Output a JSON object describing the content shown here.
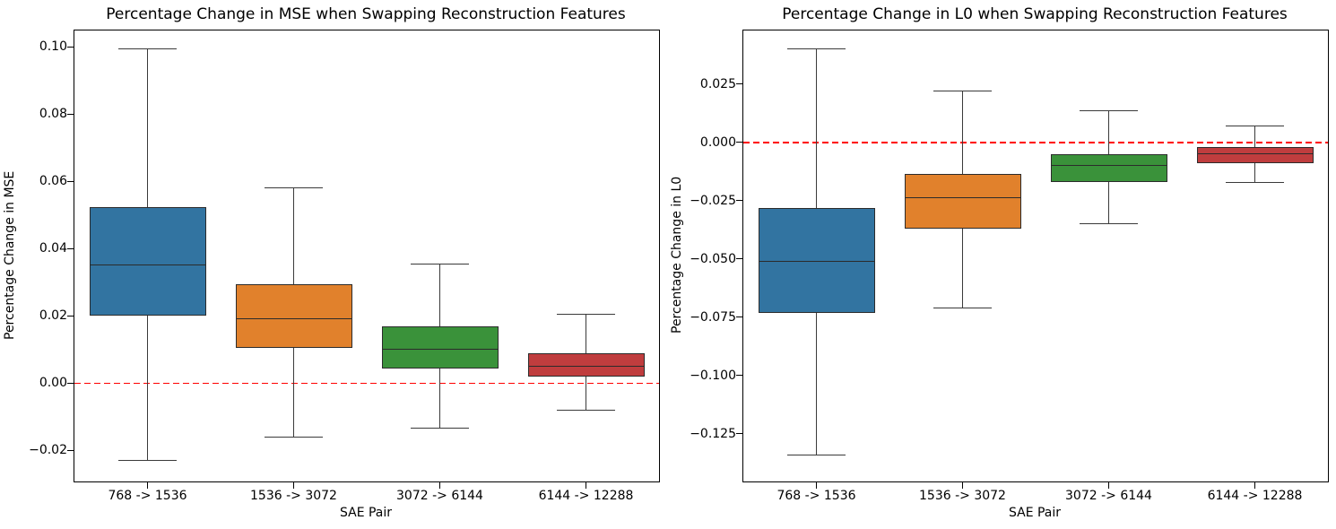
{
  "chart_data": [
    {
      "type": "boxplot",
      "title": "Percentage Change in MSE when Swapping Reconstruction Features",
      "xlabel": "SAE Pair",
      "ylabel": "Percentage Change in MSE",
      "categories": [
        "768 -> 1536",
        "1536 -> 3072",
        "3072 -> 6144",
        "6144 -> 12288"
      ],
      "ylim": [
        -0.0292,
        0.1049
      ],
      "yticks": [
        0.1,
        0.08,
        0.06,
        0.04,
        0.02,
        0.0,
        -0.02
      ],
      "ytick_decimals": 2,
      "grid": false,
      "ref_line": {
        "y": 0.0,
        "color": "#ff0000",
        "style": "dashed"
      },
      "boxes": [
        {
          "category": "768 -> 1536",
          "color": "#3274a1",
          "whisker_low": -0.023,
          "q1": 0.02,
          "median": 0.035,
          "q3": 0.0525,
          "whisker_high": 0.0995
        },
        {
          "category": "1536 -> 3072",
          "color": "#e1812c",
          "whisker_low": -0.016,
          "q1": 0.0105,
          "median": 0.019,
          "q3": 0.0295,
          "whisker_high": 0.058
        },
        {
          "category": "3072 -> 6144",
          "color": "#3a923a",
          "whisker_low": -0.0135,
          "q1": 0.0045,
          "median": 0.01,
          "q3": 0.017,
          "whisker_high": 0.0355
        },
        {
          "category": "6144 -> 12288",
          "color": "#c03d3e",
          "whisker_low": -0.008,
          "q1": 0.002,
          "median": 0.005,
          "q3": 0.009,
          "whisker_high": 0.0205
        }
      ]
    },
    {
      "type": "boxplot",
      "title": "Percentage Change in L0 when Swapping Reconstruction Features",
      "xlabel": "SAE Pair",
      "ylabel": "Percentage Change in L0",
      "categories": [
        "768 -> 1536",
        "1536 -> 3072",
        "3072 -> 6144",
        "6144 -> 12288"
      ],
      "ylim": [
        -0.1454,
        0.0481
      ],
      "yticks": [
        0.025,
        0.0,
        -0.025,
        -0.05,
        -0.075,
        -0.1,
        -0.125
      ],
      "ytick_decimals": 3,
      "grid": false,
      "ref_line": {
        "y": 0.0,
        "color": "#ff0000",
        "style": "dashed"
      },
      "boxes": [
        {
          "category": "768 -> 1536",
          "color": "#3274a1",
          "whisker_low": -0.134,
          "q1": -0.073,
          "median": -0.051,
          "q3": -0.028,
          "whisker_high": 0.04
        },
        {
          "category": "1536 -> 3072",
          "color": "#e1812c",
          "whisker_low": -0.071,
          "q1": -0.037,
          "median": -0.024,
          "q3": -0.0135,
          "whisker_high": 0.022
        },
        {
          "category": "3072 -> 6144",
          "color": "#3a923a",
          "whisker_low": -0.035,
          "q1": -0.017,
          "median": -0.01,
          "q3": -0.005,
          "whisker_high": 0.0135
        },
        {
          "category": "6144 -> 12288",
          "color": "#c03d3e",
          "whisker_low": -0.017,
          "q1": -0.009,
          "median": -0.005,
          "q3": -0.002,
          "whisker_high": 0.007
        }
      ]
    }
  ]
}
